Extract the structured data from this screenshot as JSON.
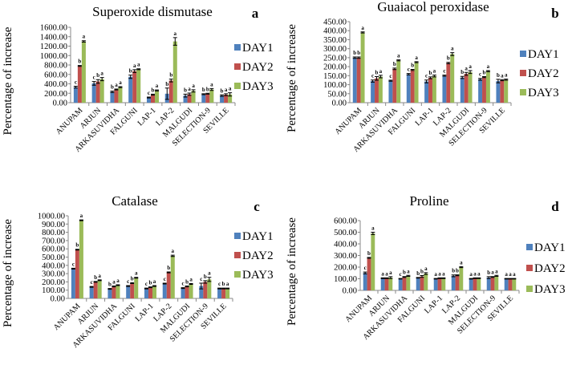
{
  "colors": {
    "DAY1": "#4f81bd",
    "DAY2": "#c0504d",
    "DAY3": "#9bbb59"
  },
  "chart_data": [
    {
      "type": "bar",
      "panel": "a",
      "title": "Superoxide dismutase",
      "ylabel": "Percentage of increase",
      "xlabel": "",
      "ylim": [
        0,
        1600
      ],
      "ytick_step": 200,
      "yticks": [
        "0.00",
        "200.00",
        "400.00",
        "600.00",
        "800.00",
        "1000.00",
        "1200.00",
        "1400.00",
        "1600.00"
      ],
      "categories": [
        "ANUPAM",
        "ARJUN",
        "ARKASUVIDHA",
        "FALGUNI",
        "LAP-1",
        "LAP-2",
        "MALGUDI",
        "SELECTION-9",
        "SEVILLE"
      ],
      "legend": [
        "DAY1",
        "DAY2",
        "DAY3"
      ],
      "legend_position": "right",
      "series": [
        {
          "name": "DAY1",
          "values": [
            330,
            410,
            230,
            550,
            110,
            190,
            150,
            180,
            150
          ],
          "errors": [
            20,
            40,
            15,
            35,
            10,
            120,
            30,
            10,
            15
          ],
          "letters": [
            "c",
            "c",
            "b",
            "b",
            "c",
            "b",
            "b",
            "b",
            "b"
          ]
        },
        {
          "name": "DAY2",
          "values": [
            780,
            450,
            280,
            670,
            170,
            470,
            180,
            190,
            170
          ],
          "errors": [
            10,
            40,
            10,
            30,
            10,
            30,
            25,
            10,
            20
          ],
          "letters": [
            "b",
            "b",
            "a",
            "a",
            "b",
            "b",
            "a",
            "b",
            "a"
          ]
        },
        {
          "name": "DAY3",
          "values": [
            1300,
            500,
            330,
            710,
            260,
            1300,
            250,
            280,
            175
          ],
          "errors": [
            15,
            35,
            10,
            10,
            10,
            80,
            25,
            20,
            35
          ],
          "letters": [
            "a",
            "a",
            "a",
            "a",
            "a",
            "a",
            "a",
            "a",
            "a"
          ]
        }
      ]
    },
    {
      "type": "bar",
      "panel": "b",
      "title": "Guaiacol peroxidase",
      "ylabel": "Percentage of increase",
      "xlabel": "",
      "ylim": [
        0,
        450
      ],
      "ytick_step": 50,
      "yticks": [
        "0.00",
        "50.00",
        "100.00",
        "150.00",
        "200.00",
        "250.00",
        "300.00",
        "350.00",
        "400.00",
        "450.00"
      ],
      "categories": [
        "ANUPAM",
        "ARJUN",
        "ARKASUVIDHA",
        "FALGUNI",
        "LAP-1",
        "LAP-2",
        "MALGUDI",
        "SELECTION-9",
        "SEVILLE"
      ],
      "legend": [
        "DAY1",
        "DAY2",
        "DAY3"
      ],
      "legend_position": "right",
      "series": [
        {
          "name": "DAY1",
          "values": [
            250,
            120,
            122,
            158,
            118,
            150,
            140,
            130,
            120
          ],
          "errors": [
            4,
            6,
            3,
            4,
            8,
            3,
            6,
            5,
            10
          ],
          "letters": [
            "b",
            "c",
            "c",
            "c",
            "c",
            "c",
            "b",
            "c",
            "b"
          ]
        },
        {
          "name": "DAY2",
          "values": [
            250,
            135,
            188,
            182,
            138,
            220,
            160,
            142,
            125
          ],
          "errors": [
            4,
            10,
            4,
            3,
            5,
            4,
            8,
            3,
            3
          ],
          "letters": [
            "b",
            "b",
            "b",
            "b",
            "b",
            "b",
            "a",
            "b",
            "a"
          ]
        },
        {
          "name": "DAY3",
          "values": [
            390,
            145,
            235,
            225,
            148,
            270,
            170,
            175,
            128
          ],
          "errors": [
            3,
            7,
            3,
            3,
            5,
            8,
            8,
            3,
            3
          ],
          "letters": [
            "a",
            "a",
            "a",
            "a",
            "a",
            "a",
            "a",
            "a",
            "a"
          ]
        }
      ]
    },
    {
      "type": "bar",
      "panel": "c",
      "title": "Catalase",
      "ylabel": "Percentage of increase",
      "xlabel": "",
      "ylim": [
        0,
        1000
      ],
      "ytick_step": 100,
      "yticks": [
        "0.00",
        "100.00",
        "200.00",
        "300.00",
        "400.00",
        "500.00",
        "600.00",
        "700.00",
        "800.00",
        "900.00",
        "1000.00"
      ],
      "categories": [
        "ANUPAM",
        "ARJUN",
        "ARKASUVIDHA",
        "FALGUNI",
        "LAP-1",
        "LAP-2",
        "MALGUDI",
        "SELECTION-9",
        "SEVILLE"
      ],
      "legend": [
        "DAY1",
        "DAY2",
        "DAY3"
      ],
      "legend_position": "right",
      "series": [
        {
          "name": "DAY1",
          "values": [
            360,
            140,
            115,
            150,
            120,
            180,
            125,
            150,
            120
          ],
          "errors": [
            5,
            5,
            5,
            5,
            5,
            5,
            5,
            35,
            5
          ],
          "letters": [
            "c",
            "c",
            "b",
            "c",
            "c",
            "c",
            "c",
            "c",
            "c"
          ]
        },
        {
          "name": "DAY2",
          "values": [
            590,
            200,
            145,
            185,
            135,
            315,
            145,
            200,
            120
          ],
          "errors": [
            5,
            5,
            5,
            5,
            5,
            5,
            5,
            15,
            5
          ],
          "letters": [
            "b",
            "b",
            "a",
            "b",
            "b",
            "b",
            "b",
            "b",
            "b"
          ]
        },
        {
          "name": "DAY3",
          "values": [
            945,
            220,
            160,
            250,
            150,
            515,
            175,
            230,
            120
          ],
          "errors": [
            5,
            5,
            5,
            5,
            5,
            8,
            5,
            25,
            5
          ],
          "letters": [
            "a",
            "a",
            "a",
            "a",
            "a",
            "a",
            "a",
            "a",
            "a"
          ]
        }
      ]
    },
    {
      "type": "bar",
      "panel": "d",
      "title": "Proline",
      "ylabel": "Percentage of increase",
      "xlabel": "",
      "ylim": [
        0,
        600
      ],
      "ytick_step": 100,
      "yticks": [
        "0.00",
        "100.00",
        "200.00",
        "300.00",
        "400.00",
        "500.00",
        "600.00"
      ],
      "categories": [
        "ANUPAM",
        "ARJUN",
        "ARKASUVIDHA",
        "FALGUNI",
        "LAP-1",
        "LAP-2",
        "MALGUDI",
        "SELECTION-9",
        "SEVILLE"
      ],
      "legend": [
        "DAY1",
        "DAY2",
        "DAY3"
      ],
      "legend_position": "right",
      "series": [
        {
          "name": "DAY1",
          "values": [
            150,
            105,
            100,
            108,
            100,
            125,
            100,
            110,
            100
          ],
          "errors": [
            8,
            3,
            3,
            3,
            3,
            8,
            3,
            8,
            3
          ],
          "letters": [
            "c",
            "a",
            "c",
            "b",
            "a",
            "b",
            "a",
            "b",
            "a"
          ]
        },
        {
          "name": "DAY2",
          "values": [
            280,
            105,
            115,
            120,
            105,
            130,
            105,
            115,
            100
          ],
          "errors": [
            4,
            3,
            4,
            8,
            3,
            4,
            3,
            4,
            3
          ],
          "letters": [
            "b",
            "a",
            "b",
            "b",
            "a",
            "b",
            "a",
            "a",
            "a"
          ]
        },
        {
          "name": "DAY3",
          "values": [
            490,
            110,
            125,
            145,
            105,
            200,
            105,
            125,
            100
          ],
          "errors": [
            10,
            8,
            4,
            8,
            3,
            4,
            3,
            4,
            3
          ],
          "letters": [
            "a",
            "a",
            "a",
            "a",
            "a",
            "a",
            "a",
            "a",
            "a"
          ]
        }
      ]
    }
  ]
}
